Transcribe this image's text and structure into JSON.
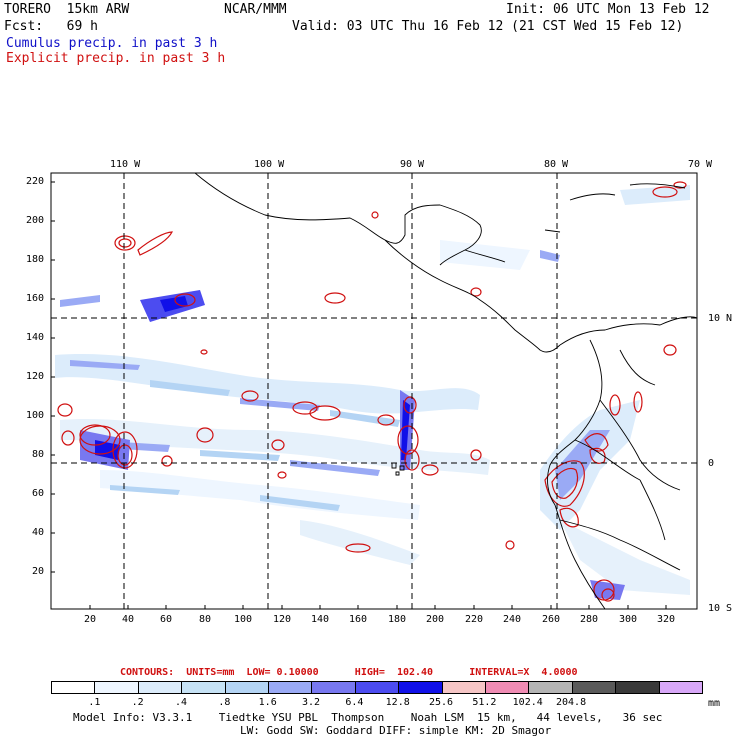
{
  "header": {
    "model": "TORERO  15km ARW",
    "org": "NCAR/MMM",
    "init": "Init: 06 UTC Mon 13 Feb 12",
    "fcst": "Fcst:   69 h",
    "valid": "Valid: 03 UTC Thu 16 Feb 12 (21 CST Wed 15 Feb 12)",
    "legend_cumulus": "Cumulus precip. in past 3 h",
    "legend_explicit": "Explicit precip. in past 3 h"
  },
  "map": {
    "lon_labels": [
      "110 W",
      "100 W",
      "90 W",
      "80 W",
      "70 W"
    ],
    "lat_labels": [
      "10 N",
      "0",
      "10 S"
    ],
    "y_ticks": [
      "220",
      "200",
      "180",
      "160",
      "140",
      "120",
      "100",
      "80",
      "60",
      "40",
      "20"
    ],
    "x_ticks": [
      "20",
      "40",
      "60",
      "80",
      "100",
      "120",
      "140",
      "160",
      "180",
      "200",
      "220",
      "240",
      "260",
      "280",
      "300",
      "320"
    ]
  },
  "contours_info": {
    "label": "CONTOURS:  UNITS=mm  LOW= 0.10000      HIGH=  102.40      INTERVAL=X  4.0000"
  },
  "colorbar": {
    "colors": [
      "#ffffff",
      "#eef6ff",
      "#dcecfb",
      "#c6e2f5",
      "#b4d4f4",
      "#9aaaf5",
      "#7878f0",
      "#4c4cf0",
      "#1010e8",
      "#f6c6c6",
      "#f08cb4",
      "#b4b4b4",
      "#5a5a5a",
      "#3a3a3a",
      "#d8a8f8"
    ],
    "labels": [
      ".1",
      ".2",
      ".4",
      ".8",
      "1.6",
      "3.2",
      "6.4",
      "12.8",
      "25.6",
      "51.2",
      "102.4",
      "204.8"
    ],
    "units": "mm"
  },
  "footer": {
    "line1": "Model Info: V3.3.1    Tiedtke YSU PBL  Thompson    Noah LSM  15 km,   44 levels,   36 sec",
    "line2": "LW: Godd SW: Goddard DIFF: simple KM: 2D Smagor"
  }
}
